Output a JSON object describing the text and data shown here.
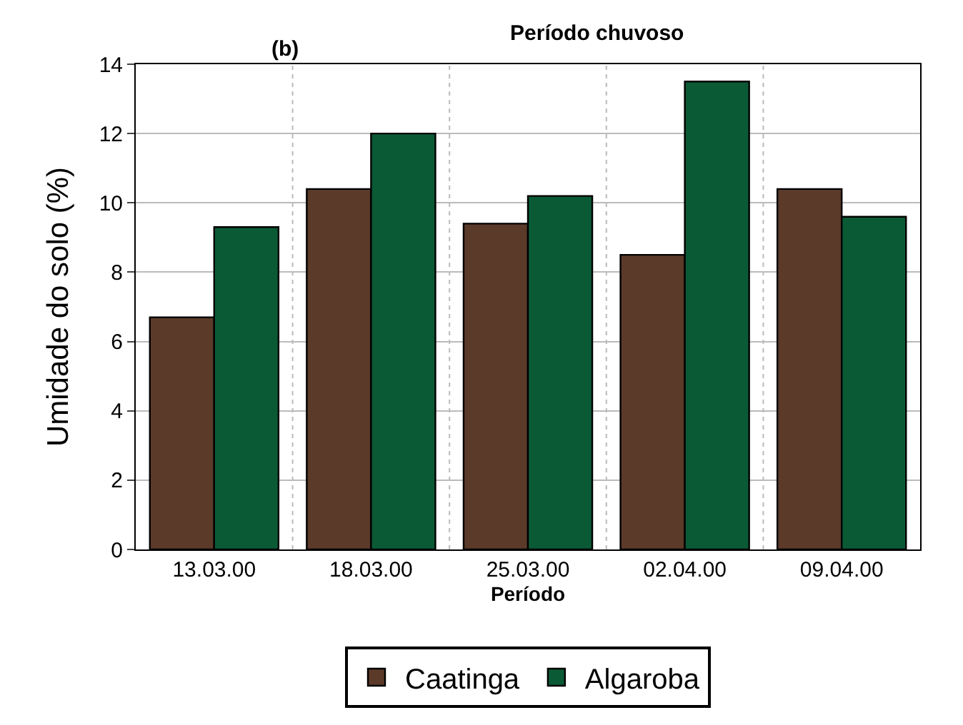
{
  "chart_data": {
    "type": "bar",
    "title": "Período chuvoso",
    "annotations": [
      "(b)"
    ],
    "xlabel": "Período",
    "ylabel": "Umidade do solo (%)",
    "categories": [
      "13.03.00",
      "18.03.00",
      "25.03.00",
      "02.04.00",
      "09.04.00"
    ],
    "series": [
      {
        "name": "Caatinga",
        "color": "#5b3a29",
        "values": [
          6.7,
          10.4,
          9.4,
          8.5,
          10.4
        ]
      },
      {
        "name": "Algaroba",
        "color": "#0b5a36",
        "values": [
          9.3,
          12.0,
          10.2,
          13.5,
          9.6
        ]
      }
    ],
    "ylim": [
      0,
      14
    ],
    "yticks": [
      0,
      2,
      4,
      6,
      8,
      10,
      12,
      14
    ],
    "grid": true,
    "legend": "bottom"
  }
}
